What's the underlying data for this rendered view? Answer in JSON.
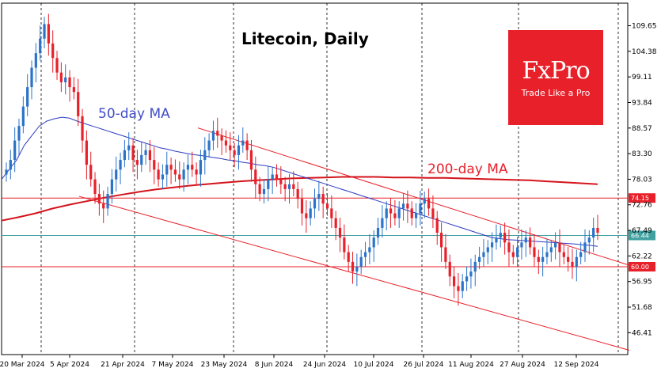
{
  "chart_data": {
    "type": "candlestick",
    "title": "Litecoin, Daily",
    "yticks": [
      "109.65",
      "104.38",
      "99.11",
      "93.84",
      "88.57",
      "83.30",
      "78.03",
      "72.76",
      "67.49",
      "62.22",
      "56.95",
      "51.68",
      "46.41"
    ],
    "ylim": [
      41.9,
      114.3
    ],
    "xticks": [
      "20 Mar 2024",
      "5 Apr 2024",
      "21 Apr 2024",
      "7 May 2024",
      "23 May 2024",
      "8 Jun 2024",
      "24 Jun 2024",
      "10 Jul 2024",
      "26 Jul 2024",
      "11 Aug 2024",
      "27 Aug 2024",
      "12 Sep 2024"
    ],
    "levels": [
      {
        "value": 74.15,
        "label": "74.15",
        "color": "#e8202a"
      },
      {
        "value": 60.0,
        "label": "60.00",
        "color": "#e8202a"
      },
      {
        "value": 66.44,
        "label": "66.44",
        "color": "#3fa0a0",
        "current": true
      }
    ],
    "annotations": {
      "ma50": "50-day MA",
      "ma200": "200-day MA"
    },
    "close_series": [
      80,
      82,
      86,
      89,
      93,
      97,
      101,
      104,
      107,
      110,
      106,
      103,
      100,
      98,
      99,
      97,
      96,
      91,
      86,
      81,
      78,
      75,
      73,
      72,
      75,
      78,
      80,
      82,
      84,
      85,
      82,
      81,
      83,
      84,
      82,
      80,
      78,
      79,
      81,
      80,
      79,
      78,
      80,
      81,
      80,
      79,
      82,
      84,
      86,
      88,
      87,
      86,
      85,
      84,
      83,
      85,
      86,
      84,
      80,
      77,
      75,
      76,
      78,
      79,
      78,
      77,
      76,
      77,
      76,
      74,
      71,
      70,
      72,
      74,
      75,
      73,
      72,
      70,
      68,
      66,
      63,
      61,
      59,
      60,
      62,
      63,
      64,
      66,
      68,
      70,
      72,
      71,
      70,
      72,
      73,
      72,
      70,
      71,
      73,
      74,
      72,
      70,
      67,
      64,
      61,
      58,
      56,
      55,
      57,
      58,
      59,
      61,
      62,
      63,
      64,
      65,
      66,
      67,
      65,
      63,
      62,
      64,
      65,
      66,
      64,
      62,
      61,
      62,
      63,
      64,
      65,
      63,
      62,
      61,
      60,
      62,
      63,
      65,
      66,
      68,
      67
    ],
    "ma50_series": [
      78,
      80,
      82,
      85,
      87,
      89,
      90,
      90.5,
      90.8,
      90.6,
      90,
      89.5,
      89,
      88.5,
      88,
      87.5,
      87,
      86.5,
      86,
      85.5,
      85,
      84.5,
      84.2,
      83.8,
      83.5,
      83.2,
      83,
      82.8,
      82.5,
      82.3,
      82,
      81.8,
      81.5,
      81.3,
      81,
      80.8,
      80.5,
      80,
      79.5,
      79,
      78.5,
      78,
      77.5,
      77,
      76.5,
      76,
      75.5,
      75,
      74.5,
      74,
      73.5,
      73,
      72.5,
      72,
      71.5,
      71,
      70.5,
      70,
      69.5,
      69,
      68.5,
      68,
      67.5,
      67,
      66.5,
      66,
      65.8,
      65.6,
      65.5,
      65.4,
      65.3,
      65.2,
      65.1,
      65,
      64.9,
      64.8,
      64.7,
      64.5,
      64.4,
      64.2
    ],
    "ma200_series": [
      69.5,
      70.2,
      71,
      72,
      72.8,
      73.5,
      74.2,
      74.8,
      75.4,
      75.9,
      76.3,
      76.7,
      77,
      77.3,
      77.6,
      77.8,
      78,
      78.2,
      78.3,
      78.4,
      78.5,
      78.5,
      78.5,
      78.4,
      78.4,
      78.3,
      78.3,
      78.2,
      78.1,
      78,
      77.9,
      77.8,
      77.6,
      77.4,
      77.2,
      77
    ],
    "channel": {
      "upper": [
        [
          250,
          88.6
        ],
        [
          795,
          60.3
        ]
      ],
      "lower": [
        [
          100,
          74.5
        ],
        [
          795,
          42.8
        ]
      ]
    }
  },
  "logo": {
    "brand": "FxPro",
    "tagline": "Trade Like a Pro"
  }
}
